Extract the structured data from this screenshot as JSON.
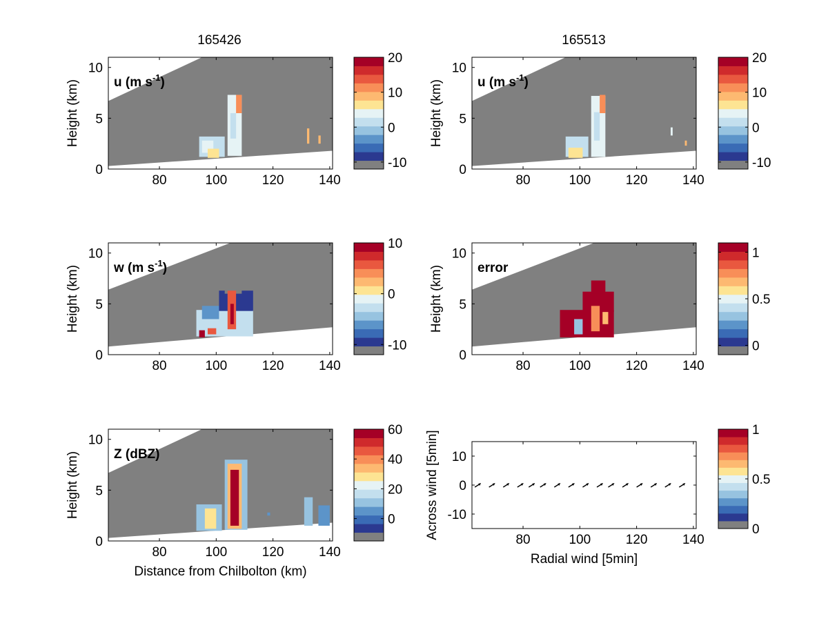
{
  "figure": {
    "column_titles": [
      "165426",
      "165513"
    ],
    "colors": {
      "background": "#ffffff",
      "beam_region": "#808080",
      "axes_edge": "#000000",
      "colormap": [
        "#808080",
        "#2b3990",
        "#3a6bb5",
        "#5c94c9",
        "#97c3e0",
        "#c3dfee",
        "#e6f3f5",
        "#fde493",
        "#fdb971",
        "#f88e58",
        "#e9583f",
        "#cf2a2c",
        "#a50026"
      ]
    }
  },
  "chart_data": [
    {
      "type": "heatmap",
      "panel": "top-left",
      "label": "u (m s-1)",
      "label_main": "u (m s",
      "label_sup": "-1",
      "label_close": ")",
      "ylabel": "Height (km)",
      "xlabel": "",
      "xlim": [
        62,
        141
      ],
      "ylim": [
        0,
        11
      ],
      "xticks": [
        80,
        100,
        120,
        140
      ],
      "yticks": [
        0,
        5,
        10
      ],
      "beam_lower": [
        [
          62,
          0.3
        ],
        [
          141,
          1.8
        ]
      ],
      "beam_upper": [
        [
          62,
          6.7
        ],
        [
          95,
          11
        ]
      ],
      "colorbar": {
        "range": [
          -12,
          20
        ],
        "ticks": [
          -10,
          0,
          10,
          20
        ]
      },
      "cells": [
        {
          "x": 94,
          "y": 1.2,
          "w": 9,
          "h": 2.0,
          "v": 2
        },
        {
          "x": 95,
          "y": 1.6,
          "w": 4,
          "h": 1.2,
          "v": 5
        },
        {
          "x": 97,
          "y": 1.1,
          "w": 4,
          "h": 0.9,
          "v": 7
        },
        {
          "x": 104,
          "y": 1.3,
          "w": 5,
          "h": 6.0,
          "v": 5
        },
        {
          "x": 105,
          "y": 3.0,
          "w": 2,
          "h": 2.5,
          "v": 1
        },
        {
          "x": 107,
          "y": 5.5,
          "w": 2,
          "h": 1.8,
          "v": 12
        },
        {
          "x": 132,
          "y": 2.5,
          "w": 0.8,
          "h": 1.5,
          "v": 8
        },
        {
          "x": 136,
          "y": 2.5,
          "w": 0.8,
          "h": 0.8,
          "v": 8
        }
      ]
    },
    {
      "type": "heatmap",
      "panel": "top-right",
      "label": "u (m s-1)",
      "label_main": "u (m s",
      "label_sup": "-1",
      "label_close": ")",
      "ylabel": "Height (km)",
      "xlabel": "",
      "xlim": [
        62,
        141
      ],
      "ylim": [
        0,
        11
      ],
      "xticks": [
        80,
        100,
        120,
        140
      ],
      "yticks": [
        0,
        5,
        10
      ],
      "beam_lower": [
        [
          62,
          0.3
        ],
        [
          141,
          1.8
        ]
      ],
      "beam_upper": [
        [
          62,
          6.7
        ],
        [
          95,
          11
        ]
      ],
      "colorbar": {
        "range": [
          -12,
          20
        ],
        "ticks": [
          -10,
          0,
          10,
          20
        ]
      },
      "cells": [
        {
          "x": 95,
          "y": 1.2,
          "w": 8,
          "h": 2.0,
          "v": 2
        },
        {
          "x": 96,
          "y": 1.1,
          "w": 5,
          "h": 1.0,
          "v": 7
        },
        {
          "x": 104,
          "y": 1.2,
          "w": 5,
          "h": 6.0,
          "v": 5
        },
        {
          "x": 105,
          "y": 2.8,
          "w": 2,
          "h": 2.8,
          "v": 1
        },
        {
          "x": 107,
          "y": 5.5,
          "w": 2,
          "h": 1.8,
          "v": 12
        },
        {
          "x": 132,
          "y": 3.3,
          "w": 0.7,
          "h": 0.8,
          "v": 3
        },
        {
          "x": 137,
          "y": 2.3,
          "w": 0.7,
          "h": 0.5,
          "v": 8
        }
      ]
    },
    {
      "type": "heatmap",
      "panel": "middle-left",
      "label": "w (m s-1)",
      "label_main": "w (m s",
      "label_sup": "-1",
      "label_close": ")",
      "ylabel": "Height (km)",
      "xlabel": "",
      "xlim": [
        62,
        141
      ],
      "ylim": [
        0,
        11
      ],
      "xticks": [
        80,
        100,
        120,
        140
      ],
      "yticks": [
        0,
        5,
        10
      ],
      "beam_lower": [
        [
          62,
          0.8
        ],
        [
          141,
          2.7
        ]
      ],
      "beam_upper": [
        [
          62,
          6.4
        ],
        [
          105,
          11
        ]
      ],
      "colorbar": {
        "range": [
          -12,
          10
        ],
        "ticks": [
          -10,
          0,
          10
        ]
      },
      "cells": [
        {
          "x": 93,
          "y": 1.8,
          "w": 20,
          "h": 2.6,
          "v": -2
        },
        {
          "x": 95,
          "y": 3.5,
          "w": 6,
          "h": 1.3,
          "v": -6
        },
        {
          "x": 101,
          "y": 4.3,
          "w": 12,
          "h": 2.0,
          "v": -9
        },
        {
          "x": 103,
          "y": 6.0,
          "w": 6,
          "h": 1.3,
          "v": -11
        },
        {
          "x": 104,
          "y": 2.5,
          "w": 3,
          "h": 3.8,
          "v": 6
        },
        {
          "x": 105,
          "y": 3.0,
          "w": 1.2,
          "h": 2.0,
          "v": 9
        },
        {
          "x": 108,
          "y": 2.6,
          "w": 3,
          "h": 1.5,
          "v": -2
        },
        {
          "x": 94,
          "y": 1.7,
          "w": 2,
          "h": 0.7,
          "v": 9
        },
        {
          "x": 97,
          "y": 2.0,
          "w": 3,
          "h": 0.6,
          "v": 5
        }
      ]
    },
    {
      "type": "heatmap",
      "panel": "middle-right",
      "label": "error",
      "label_main": "error",
      "label_sup": "",
      "label_close": "",
      "ylabel": "Height (km)",
      "xlabel": "",
      "xlim": [
        62,
        141
      ],
      "ylim": [
        0,
        11
      ],
      "xticks": [
        80,
        100,
        120,
        140
      ],
      "yticks": [
        0,
        5,
        10
      ],
      "beam_lower": [
        [
          62,
          0.8
        ],
        [
          141,
          2.7
        ]
      ],
      "beam_upper": [
        [
          62,
          6.4
        ],
        [
          105,
          11
        ]
      ],
      "colorbar": {
        "range": [
          -0.1,
          1.1
        ],
        "ticks": [
          0,
          0.5,
          1
        ]
      },
      "cells": [
        {
          "x": 93,
          "y": 1.7,
          "w": 19,
          "h": 2.7,
          "v": 1.05
        },
        {
          "x": 101,
          "y": 4.2,
          "w": 11,
          "h": 2.0,
          "v": 1.05
        },
        {
          "x": 104,
          "y": 6.0,
          "w": 5,
          "h": 1.3,
          "v": 1.05
        },
        {
          "x": 98,
          "y": 2.0,
          "w": 3,
          "h": 1.5,
          "v": 0.35
        },
        {
          "x": 104,
          "y": 2.3,
          "w": 3,
          "h": 2.5,
          "v": 0.75
        },
        {
          "x": 108,
          "y": 3.0,
          "w": 2,
          "h": 1.2,
          "v": 0.65
        }
      ]
    },
    {
      "type": "heatmap",
      "panel": "bottom-left",
      "label": "Z (dBZ)",
      "label_main": "Z (dBZ)",
      "label_sup": "",
      "label_close": "",
      "ylabel": "Height (km)",
      "xlabel": "Distance from Chilbolton (km)",
      "xlim": [
        62,
        141
      ],
      "ylim": [
        0,
        11
      ],
      "xticks": [
        80,
        100,
        120,
        140
      ],
      "yticks": [
        0,
        5,
        10
      ],
      "beam_lower": [
        [
          62,
          0.3
        ],
        [
          141,
          1.8
        ]
      ],
      "beam_upper": [
        [
          62,
          6.7
        ],
        [
          95,
          11
        ]
      ],
      "colorbar": {
        "range": [
          -15,
          60
        ],
        "ticks": [
          0,
          20,
          40,
          60
        ]
      },
      "cells": [
        {
          "x": 93,
          "y": 1.0,
          "w": 9,
          "h": 2.6,
          "v": 10
        },
        {
          "x": 96,
          "y": 1.2,
          "w": 4,
          "h": 2.0,
          "v": 28
        },
        {
          "x": 103,
          "y": 1.1,
          "w": 8,
          "h": 6.9,
          "v": 12
        },
        {
          "x": 104,
          "y": 1.2,
          "w": 5,
          "h": 6.4,
          "v": 35
        },
        {
          "x": 105,
          "y": 1.5,
          "w": 3,
          "h": 5.5,
          "v": 55
        },
        {
          "x": 131,
          "y": 1.5,
          "w": 3,
          "h": 2.8,
          "v": 10
        },
        {
          "x": 136,
          "y": 1.5,
          "w": 4,
          "h": 2.0,
          "v": 8
        },
        {
          "x": 118,
          "y": 2.5,
          "w": 1,
          "h": 0.3,
          "v": 8
        }
      ]
    },
    {
      "type": "scatter",
      "panel": "bottom-right",
      "label": "",
      "ylabel": "Across wind [5min]",
      "xlabel": "Radial wind [5min]",
      "xlim": [
        62,
        141
      ],
      "ylim": [
        -15,
        15
      ],
      "xticks": [
        80,
        100,
        120,
        140
      ],
      "yticks": [
        -10,
        0,
        10
      ],
      "colorbar": {
        "range": [
          0,
          1
        ],
        "ticks": [
          0,
          0.5,
          1
        ]
      },
      "arrows_x": [
        63,
        68,
        73,
        78,
        82,
        86,
        91,
        96,
        101,
        106,
        110,
        115,
        120,
        125,
        130,
        135
      ],
      "arrows_y": 0
    }
  ]
}
